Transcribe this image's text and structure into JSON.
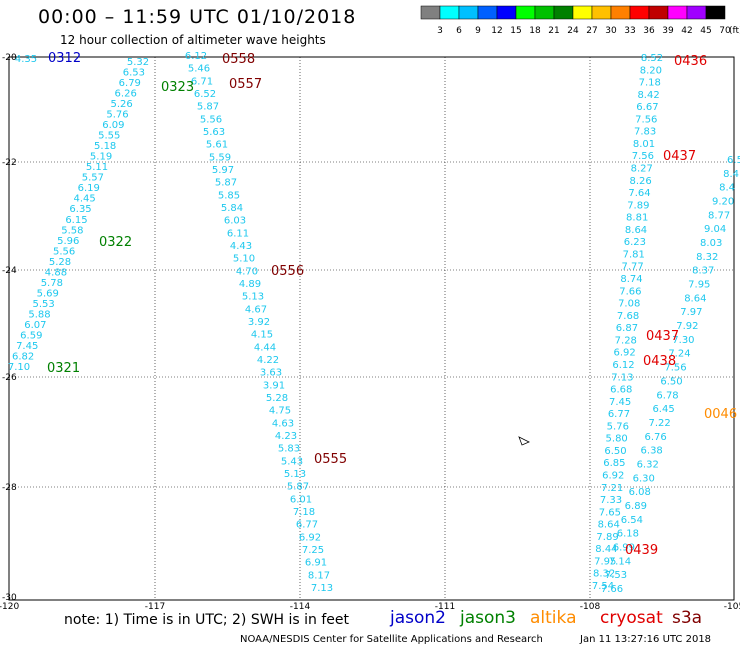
{
  "header": {
    "title": "00:00 – 11:59 UTC 01/10/2018",
    "subtitle": "12 hour collection of altimeter wave heights"
  },
  "colorbar": {
    "unit": "(ft)",
    "ticks": [
      "3",
      "6",
      "9",
      "12",
      "15",
      "18",
      "21",
      "24",
      "27",
      "30",
      "33",
      "36",
      "39",
      "42",
      "45",
      "70"
    ],
    "colors": [
      "#808080",
      "#00ffff",
      "#00c0ff",
      "#0060ff",
      "#0000ff",
      "#00ff00",
      "#00c000",
      "#008000",
      "#ffff00",
      "#ffc000",
      "#ff8000",
      "#ff0000",
      "#c00000",
      "#ff00ff",
      "#a000ff",
      "#000000"
    ]
  },
  "axes": {
    "x_ticks": [
      "-120",
      "-117",
      "-114",
      "-111",
      "-108",
      "-105"
    ],
    "y_ticks": [
      "-20",
      "-22",
      "-24",
      "-26",
      "-28",
      "-30"
    ]
  },
  "colors": {
    "swh": "#1ec8ee",
    "jason2": "#0000c8",
    "jason3": "#008000",
    "altika": "#ff8c00",
    "cryosat": "#e00000",
    "s3a": "#800000"
  },
  "hour_labels": [
    {
      "text": "0312",
      "sat": "jason2"
    },
    {
      "text": "0323",
      "sat": "jason3"
    },
    {
      "text": "0322",
      "sat": "jason3"
    },
    {
      "text": "0321",
      "sat": "jason3"
    },
    {
      "text": "0558",
      "sat": "s3a"
    },
    {
      "text": "0557",
      "sat": "s3a"
    },
    {
      "text": "0556",
      "sat": "s3a"
    },
    {
      "text": "0555",
      "sat": "s3a"
    },
    {
      "text": "0436",
      "sat": "cryosat"
    },
    {
      "text": "0437",
      "sat": "cryosat"
    },
    {
      "text": "0437",
      "sat": "cryosat"
    },
    {
      "text": "0438",
      "sat": "cryosat"
    },
    {
      "text": "0439",
      "sat": "cryosat"
    },
    {
      "text": "0046",
      "sat": "altika"
    }
  ],
  "tracks": [
    {
      "sat": "jason3",
      "values": [
        "5.32",
        "6.53",
        "6.79",
        "6.26",
        "5.26",
        "5.76",
        "6.09",
        "5.55",
        "5.18",
        "5.19",
        "5.11",
        "5.57",
        "6.19",
        "4.45",
        "6.35",
        "6.15",
        "5.58",
        "5.96",
        "5.56",
        "5.28",
        "4.88",
        "5.78",
        "5.69",
        "5.53",
        "5.88",
        "6.07",
        "6.59",
        "7.45",
        "6.82",
        "7.10"
      ]
    },
    {
      "sat": "s3a",
      "values": [
        "6.12",
        "5.46",
        "6.71",
        "6.52",
        "5.87",
        "5.56",
        "5.63",
        "5.61",
        "5.59",
        "5.97",
        "5.87",
        "5.85",
        "5.84",
        "6.03",
        "6.11",
        "4.43",
        "5.10",
        "4.70",
        "4.89",
        "5.13",
        "4.67",
        "3.92",
        "4.15",
        "4.44",
        "4.22",
        "3.63",
        "3.91",
        "5.28",
        "4.75",
        "4.63",
        "4.23",
        "5.83",
        "5.43",
        "5.13",
        "5.87",
        "6.01",
        "7.18",
        "6.77",
        "6.92",
        "7.25",
        "6.91",
        "8.17",
        "7.13"
      ]
    },
    {
      "sat": "cryosat",
      "values": [
        "8.52",
        "8.20",
        "7.18",
        "8.42",
        "6.67",
        "7.56",
        "7.83",
        "8.01",
        "7.56",
        "8.27",
        "8.26",
        "7.64",
        "7.89",
        "8.81",
        "8.64",
        "6.23",
        "7.81",
        "7.77",
        "8.74",
        "7.66",
        "7.08",
        "7.68",
        "6.87",
        "7.28",
        "6.92",
        "6.12",
        "7.13",
        "6.68",
        "7.45",
        "6.77",
        "5.76",
        "5.80",
        "6.50",
        "6.85",
        "6.92",
        "7.21",
        "7.33",
        "7.65",
        "8.64",
        "7.89",
        "8.44",
        "7.95",
        "8.32",
        "7.54"
      ]
    },
    {
      "sat": "cryosat",
      "values": [
        "6.5",
        "8.4",
        "8.4",
        "9.20",
        "8.77",
        "9.04",
        "8.03",
        "8.32",
        "8.37",
        "7.95",
        "8.64",
        "7.97",
        "7.92",
        "7.30",
        "7.24",
        "7.56",
        "6.50",
        "6.78",
        "6.45",
        "7.22",
        "6.76",
        "6.38",
        "6.32",
        "6.30",
        "6.08",
        "6.89",
        "6.54",
        "6.18",
        "6.99",
        "7.14",
        "7.53",
        "7.66"
      ]
    }
  ],
  "footer": {
    "note": "note:  1) Time is in UTC;  2) SWH is in feet",
    "legend": [
      "jason2",
      "jason3",
      "altika",
      "cryosat",
      "s3a"
    ],
    "credit": "NOAA/NESDIS Center for Satellite Applications and Research",
    "timestamp": "Jan 11 13:27:16 UTC 2018"
  }
}
